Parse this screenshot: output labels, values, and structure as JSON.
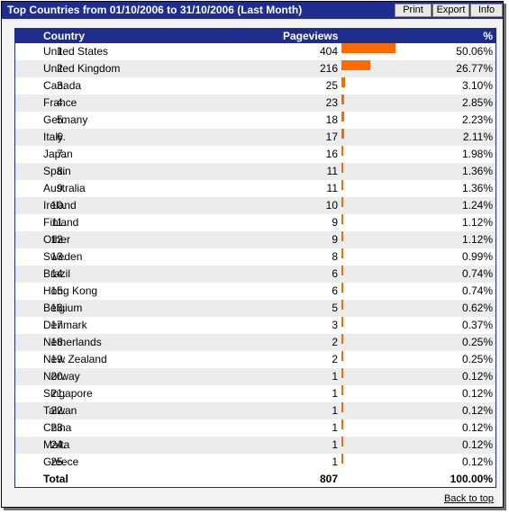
{
  "window": {
    "title": "Top Countries from 01/10/2006 to 31/10/2006 (Last Month)",
    "buttons": {
      "print": "Print",
      "export": "Export",
      "info": "Info"
    }
  },
  "table": {
    "headers": {
      "country": "Country",
      "pageviews": "Pageviews",
      "percent": "%"
    },
    "rows": [
      {
        "rank": "1.",
        "country": "United States",
        "pageviews": "404",
        "percent": "50.06%",
        "share": 50.06
      },
      {
        "rank": "2.",
        "country": "United Kingdom",
        "pageviews": "216",
        "percent": "26.77%",
        "share": 26.77
      },
      {
        "rank": "3.",
        "country": "Canada",
        "pageviews": "25",
        "percent": "3.10%",
        "share": 3.1
      },
      {
        "rank": "4.",
        "country": "France",
        "pageviews": "23",
        "percent": "2.85%",
        "share": 2.85
      },
      {
        "rank": "5.",
        "country": "Germany",
        "pageviews": "18",
        "percent": "2.23%",
        "share": 2.23
      },
      {
        "rank": "6.",
        "country": "Italy",
        "pageviews": "17",
        "percent": "2.11%",
        "share": 2.11
      },
      {
        "rank": "7.",
        "country": "Japan",
        "pageviews": "16",
        "percent": "1.98%",
        "share": 1.98
      },
      {
        "rank": "8.",
        "country": "Spain",
        "pageviews": "11",
        "percent": "1.36%",
        "share": 1.36
      },
      {
        "rank": "9.",
        "country": "Australia",
        "pageviews": "11",
        "percent": "1.36%",
        "share": 1.36
      },
      {
        "rank": "10.",
        "country": "Ireland",
        "pageviews": "10",
        "percent": "1.24%",
        "share": 1.24
      },
      {
        "rank": "11.",
        "country": "Finland",
        "pageviews": "9",
        "percent": "1.12%",
        "share": 1.12
      },
      {
        "rank": "12.",
        "country": "Other",
        "pageviews": "9",
        "percent": "1.12%",
        "share": 1.12
      },
      {
        "rank": "13.",
        "country": "Sweden",
        "pageviews": "8",
        "percent": "0.99%",
        "share": 0.99
      },
      {
        "rank": "14.",
        "country": "Brazil",
        "pageviews": "6",
        "percent": "0.74%",
        "share": 0.74
      },
      {
        "rank": "15.",
        "country": "Hong Kong",
        "pageviews": "6",
        "percent": "0.74%",
        "share": 0.74
      },
      {
        "rank": "16.",
        "country": "Belgium",
        "pageviews": "5",
        "percent": "0.62%",
        "share": 0.62
      },
      {
        "rank": "17.",
        "country": "Denmark",
        "pageviews": "3",
        "percent": "0.37%",
        "share": 0.37
      },
      {
        "rank": "18.",
        "country": "Netherlands",
        "pageviews": "2",
        "percent": "0.25%",
        "share": 0.25
      },
      {
        "rank": "19.",
        "country": "New Zealand",
        "pageviews": "2",
        "percent": "0.25%",
        "share": 0.25
      },
      {
        "rank": "20.",
        "country": "Norway",
        "pageviews": "1",
        "percent": "0.12%",
        "share": 0.12
      },
      {
        "rank": "21.",
        "country": "Singapore",
        "pageviews": "1",
        "percent": "0.12%",
        "share": 0.12
      },
      {
        "rank": "22.",
        "country": "Taiwan",
        "pageviews": "1",
        "percent": "0.12%",
        "share": 0.12
      },
      {
        "rank": "23.",
        "country": "China",
        "pageviews": "1",
        "percent": "0.12%",
        "share": 0.12
      },
      {
        "rank": "24.",
        "country": "Malta",
        "pageviews": "1",
        "percent": "0.12%",
        "share": 0.12
      },
      {
        "rank": "25.",
        "country": "Greece",
        "pageviews": "1",
        "percent": "0.12%",
        "share": 0.12
      }
    ],
    "total": {
      "label": "Total",
      "pageviews": "807",
      "percent": "100.00%"
    }
  },
  "footer": {
    "back_to_top": "Back to top"
  },
  "colors": {
    "header_bg": "#1f2d8f",
    "bar": "#ff6a00",
    "row_alt": "#ececec"
  }
}
